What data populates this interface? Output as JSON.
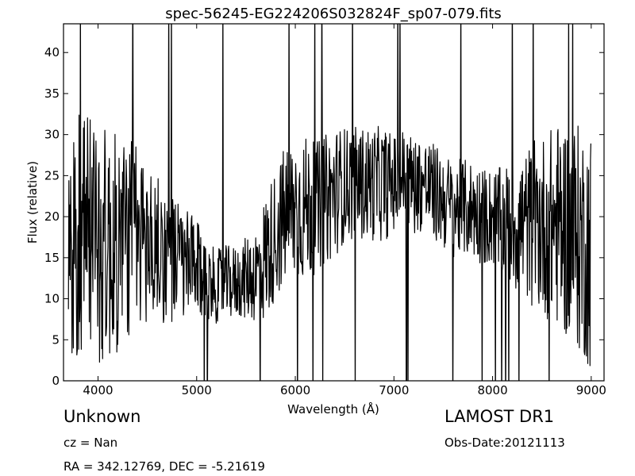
{
  "chart_data": {
    "type": "line",
    "title": "spec-56245-EG224206S032824F_sp07-079.fits",
    "xlabel": "Wavelength (Å)",
    "ylabel": "Flux (relative)",
    "xlim": [
      3650,
      9130
    ],
    "ylim": [
      0,
      43.5
    ],
    "xticks": [
      4000,
      5000,
      6000,
      7000,
      8000,
      9000
    ],
    "yticks": [
      0,
      5,
      10,
      15,
      20,
      25,
      30,
      35,
      40
    ],
    "grid": false,
    "legend": "none",
    "line_color": "#000000",
    "series": [
      {
        "x": [
          3700,
          3850,
          4000,
          4150,
          4300,
          4450,
          4600,
          4750,
          4900,
          5000,
          5100,
          5200,
          5300,
          5400,
          5500,
          5600,
          5700,
          5800,
          5900,
          6000,
          6100,
          6200,
          6300,
          6400,
          6500,
          6600,
          6700,
          6800,
          6900,
          7000,
          7100,
          7200,
          7300,
          7400,
          7500,
          7600,
          7700,
          7800,
          7900,
          8000,
          8100,
          8200,
          8300,
          8400,
          8500,
          8600,
          8700,
          8800,
          8900,
          9000
        ],
        "values": [
          17,
          18,
          17,
          16,
          18,
          17,
          16,
          15,
          14,
          13.5,
          12,
          11.5,
          12,
          12,
          12.5,
          13,
          15,
          18,
          20,
          21,
          21,
          21,
          22,
          23,
          24,
          24,
          24,
          24,
          24,
          24,
          25,
          24,
          24,
          23,
          22,
          21,
          21,
          21,
          20,
          20,
          19,
          19,
          19,
          19,
          19,
          19,
          19,
          18,
          17,
          16
        ]
      }
    ],
    "noise_amplitude": [
      16,
      16,
      15,
      14,
      13,
      11,
      9,
      8,
      7,
      6,
      5,
      4.5,
      4.5,
      4.5,
      5,
      6,
      8,
      8,
      9,
      9,
      9,
      8,
      8,
      8,
      7,
      7,
      7,
      7,
      7,
      6,
      6,
      6,
      6,
      6,
      6,
      6,
      6,
      6,
      6,
      6,
      7,
      8,
      9,
      10,
      11,
      12,
      13,
      14,
      14,
      15
    ]
  },
  "footer": {
    "object_class": "Unknown",
    "redshift": "cz = Nan",
    "coordinates": "RA = 342.12769, DEC = -5.21619",
    "survey": "LAMOST DR1",
    "obs_date": "Obs-Date:20121113"
  }
}
